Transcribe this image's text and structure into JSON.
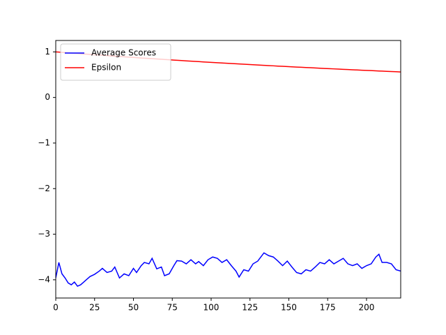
{
  "chart_data": {
    "type": "line",
    "x": [
      0,
      2,
      4,
      6,
      8,
      10,
      12,
      14,
      16,
      18,
      20,
      22,
      25,
      28,
      30,
      33,
      36,
      38,
      41,
      44,
      47,
      50,
      52,
      55,
      57,
      60,
      62,
      65,
      68,
      70,
      73,
      76,
      78,
      81,
      84,
      87,
      90,
      92,
      95,
      98,
      101,
      104,
      107,
      110,
      113,
      116,
      118,
      121,
      124,
      127,
      130,
      132,
      134,
      137,
      140,
      143,
      146,
      149,
      152,
      155,
      158,
      161,
      164,
      167,
      170,
      173,
      176,
      179,
      182,
      185,
      188,
      191,
      194,
      197,
      200,
      203,
      206,
      208,
      210,
      213,
      216,
      219,
      222
    ],
    "series": [
      {
        "name": "Average Scores",
        "color": "#0000ff",
        "values": [
          -3.96,
          -3.62,
          -3.87,
          -3.96,
          -4.07,
          -4.11,
          -4.05,
          -4.14,
          -4.11,
          -4.05,
          -3.99,
          -3.93,
          -3.88,
          -3.81,
          -3.75,
          -3.84,
          -3.81,
          -3.72,
          -3.96,
          -3.87,
          -3.91,
          -3.75,
          -3.84,
          -3.69,
          -3.62,
          -3.65,
          -3.53,
          -3.76,
          -3.72,
          -3.91,
          -3.87,
          -3.69,
          -3.58,
          -3.59,
          -3.65,
          -3.56,
          -3.65,
          -3.6,
          -3.69,
          -3.56,
          -3.5,
          -3.53,
          -3.62,
          -3.56,
          -3.69,
          -3.81,
          -3.94,
          -3.78,
          -3.81,
          -3.65,
          -3.59,
          -3.5,
          -3.41,
          -3.47,
          -3.5,
          -3.59,
          -3.69,
          -3.59,
          -3.72,
          -3.84,
          -3.87,
          -3.78,
          -3.81,
          -3.72,
          -3.62,
          -3.65,
          -3.56,
          -3.65,
          -3.59,
          -3.53,
          -3.65,
          -3.69,
          -3.65,
          -3.75,
          -3.69,
          -3.65,
          -3.5,
          -3.44,
          -3.62,
          -3.62,
          -3.65,
          -3.78,
          -3.81
        ]
      },
      {
        "name": "Epsilon",
        "color": "#ff0000",
        "values": [
          1.0,
          0.995,
          0.99,
          0.984,
          0.979,
          0.974,
          0.969,
          0.964,
          0.959,
          0.954,
          0.949,
          0.944,
          0.937,
          0.93,
          0.925,
          0.918,
          0.91,
          0.906,
          0.899,
          0.892,
          0.885,
          0.878,
          0.873,
          0.866,
          0.862,
          0.855,
          0.851,
          0.844,
          0.838,
          0.833,
          0.827,
          0.82,
          0.816,
          0.809,
          0.803,
          0.797,
          0.791,
          0.787,
          0.78,
          0.774,
          0.768,
          0.762,
          0.756,
          0.75,
          0.745,
          0.739,
          0.735,
          0.729,
          0.723,
          0.718,
          0.712,
          0.708,
          0.705,
          0.699,
          0.694,
          0.688,
          0.683,
          0.678,
          0.672,
          0.667,
          0.662,
          0.657,
          0.652,
          0.647,
          0.642,
          0.636,
          0.632,
          0.627,
          0.622,
          0.617,
          0.612,
          0.607,
          0.603,
          0.598,
          0.593,
          0.589,
          0.584,
          0.581,
          0.578,
          0.573,
          0.569,
          0.565,
          0.56
        ]
      }
    ],
    "xlim": [
      0,
      222
    ],
    "ylim": [
      -4.4,
      1.25
    ],
    "xticks": [
      0,
      25,
      50,
      75,
      100,
      125,
      150,
      175,
      200
    ],
    "yticks": [
      {
        "value": -4,
        "label": "−4"
      },
      {
        "value": -3,
        "label": "−3"
      },
      {
        "value": -2,
        "label": "−2"
      },
      {
        "value": -1,
        "label": "−1"
      },
      0,
      1
    ],
    "legend": "upper left"
  }
}
